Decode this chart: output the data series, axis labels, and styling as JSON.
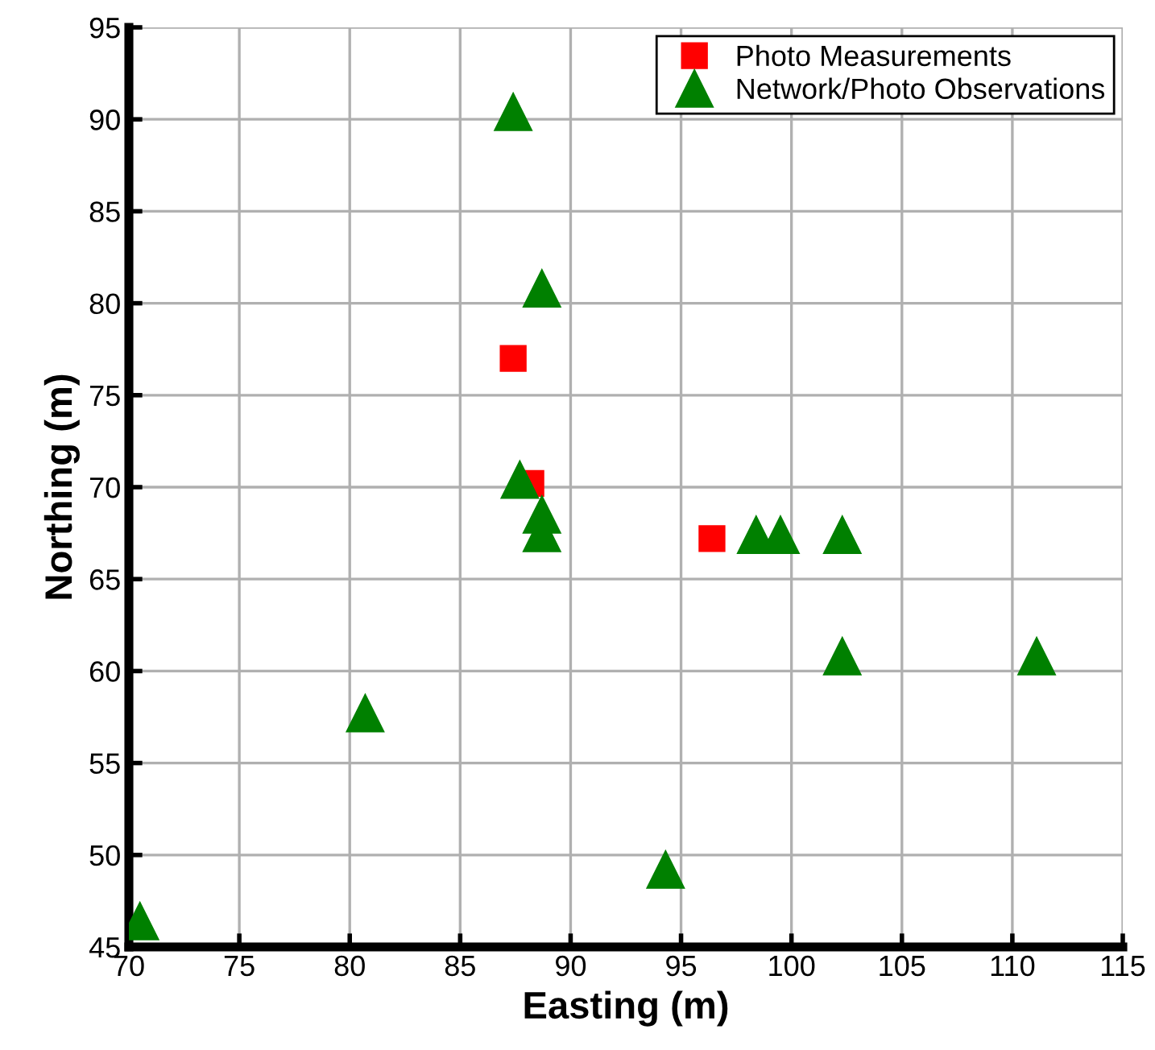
{
  "chart_data": {
    "type": "scatter",
    "xlabel": "Easting (m)",
    "ylabel": "Northing (m)",
    "xlim": [
      70,
      115
    ],
    "ylim": [
      45,
      95
    ],
    "xticks": [
      70,
      75,
      80,
      85,
      90,
      95,
      100,
      105,
      110,
      115
    ],
    "yticks": [
      45,
      50,
      55,
      60,
      65,
      70,
      75,
      80,
      85,
      90,
      95
    ],
    "grid": true,
    "legend": "top right",
    "series": [
      {
        "name": "Photo Measurements",
        "color": "#ff0000",
        "marker": "square",
        "x": [
          87.4,
          88.2,
          96.4
        ],
        "values": [
          77.0,
          70.2,
          67.2
        ]
      },
      {
        "name": "Network/Photo Observations",
        "color": "#008000",
        "marker": "triangle",
        "x": [
          87.4,
          88.7,
          87.7,
          88.7,
          88.7,
          98.4,
          99.5,
          102.3,
          102.3,
          111.1,
          80.7,
          94.3,
          70.5
        ],
        "values": [
          90.4,
          80.8,
          70.4,
          68.5,
          67.5,
          67.4,
          67.4,
          67.4,
          60.8,
          60.8,
          57.7,
          49.2,
          46.4
        ]
      }
    ]
  }
}
